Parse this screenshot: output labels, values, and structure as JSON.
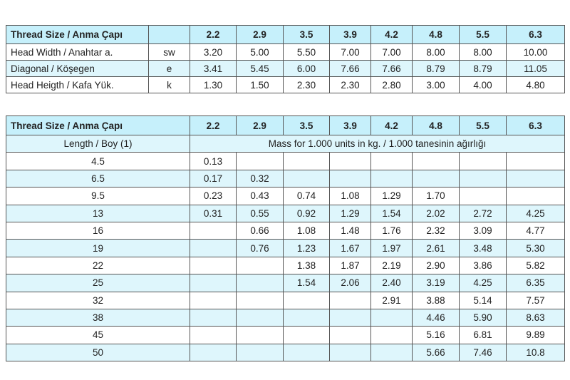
{
  "table1": {
    "header": {
      "label": "Thread Size / Anma Çapı",
      "sizes": [
        "2.2",
        "2.9",
        "3.5",
        "3.9",
        "4.2",
        "4.8",
        "5.5",
        "6.3"
      ]
    },
    "rows": [
      {
        "label": "Head Width / Anahtar a.",
        "symbol": "sw",
        "values": [
          "3.20",
          "5.00",
          "5.50",
          "7.00",
          "7.00",
          "8.00",
          "8.00",
          "10.00"
        ]
      },
      {
        "label": "Diagonal / Köşegen",
        "symbol": "e",
        "values": [
          "3.41",
          "5.45",
          "6.00",
          "7.66",
          "7.66",
          "8.79",
          "8.79",
          "11.05"
        ]
      },
      {
        "label": "Head Heigth / Kafa Yük.",
        "symbol": "k",
        "values": [
          "1.30",
          "1.50",
          "2.30",
          "2.30",
          "2.80",
          "3.00",
          "4.00",
          "4.80"
        ]
      }
    ]
  },
  "table2": {
    "header": {
      "label": "Thread Size / Anma Çapı",
      "sizes": [
        "2.2",
        "2.9",
        "3.5",
        "3.9",
        "4.2",
        "4.8",
        "5.5",
        "6.3"
      ]
    },
    "subheader": {
      "label": "Length / Boy (1)",
      "note": "Mass for 1.000 units in kg. / 1.000 tanesinin ağırlığı"
    },
    "rows": [
      {
        "length": "4.5",
        "values": [
          "0.13",
          null,
          null,
          null,
          null,
          null,
          null,
          null
        ]
      },
      {
        "length": "6.5",
        "values": [
          "0.17",
          "0.32",
          null,
          null,
          null,
          null,
          null,
          null
        ]
      },
      {
        "length": "9.5",
        "values": [
          "0.23",
          "0.43",
          "0.74",
          "1.08",
          "1.29",
          "1.70",
          null,
          null
        ]
      },
      {
        "length": "13",
        "values": [
          "0.31",
          "0.55",
          "0.92",
          "1.29",
          "1.54",
          "2.02",
          "2.72",
          "4.25"
        ]
      },
      {
        "length": "16",
        "values": [
          null,
          "0.66",
          "1.08",
          "1.48",
          "1.76",
          "2.32",
          "3.09",
          "4.77"
        ]
      },
      {
        "length": "19",
        "values": [
          null,
          "0.76",
          "1.23",
          "1.67",
          "1.97",
          "2.61",
          "3.48",
          "5.30"
        ]
      },
      {
        "length": "22",
        "values": [
          null,
          null,
          "1.38",
          "1.87",
          "2.19",
          "2.90",
          "3.86",
          "5.82"
        ]
      },
      {
        "length": "25",
        "values": [
          null,
          null,
          "1.54",
          "2.06",
          "2.40",
          "3.19",
          "4.25",
          "6.35"
        ]
      },
      {
        "length": "32",
        "values": [
          null,
          null,
          null,
          null,
          "2.91",
          "3.88",
          "5.14",
          "7.57"
        ]
      },
      {
        "length": "38",
        "values": [
          null,
          null,
          null,
          null,
          null,
          "4.46",
          "5.90",
          "8.63"
        ]
      },
      {
        "length": "45",
        "values": [
          null,
          null,
          null,
          null,
          null,
          "5.16",
          "6.81",
          "9.89"
        ]
      },
      {
        "length": "50",
        "values": [
          null,
          null,
          null,
          null,
          null,
          "5.66",
          "7.46",
          "10.8"
        ]
      }
    ]
  }
}
